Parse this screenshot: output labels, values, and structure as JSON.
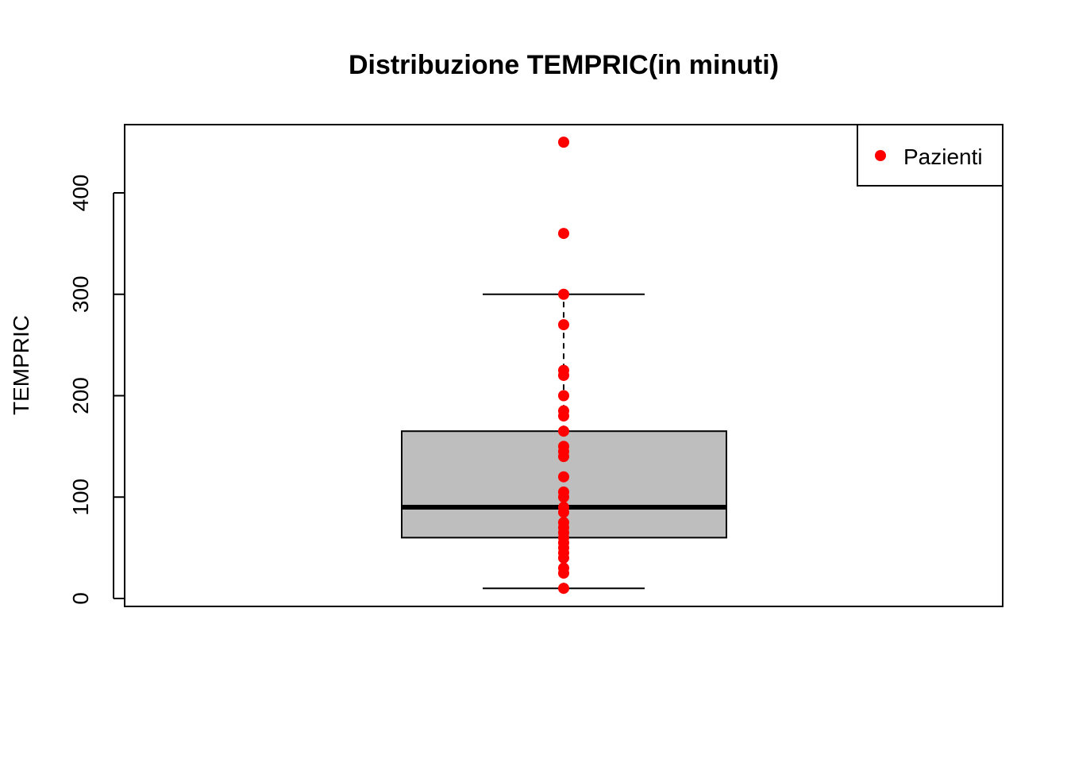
{
  "chart_data": {
    "type": "boxplot",
    "title": "Distribuzione TEMPRIC(in minuti)",
    "ylabel": "TEMPRIC",
    "xlabel": "",
    "ylim": [
      0,
      460
    ],
    "yticks": [
      0,
      100,
      200,
      300,
      400
    ],
    "grid": false,
    "box": {
      "lower_whisker": 10,
      "q1": 60,
      "median": 90,
      "q3": 165,
      "upper_whisker": 300
    },
    "box_color": "#bebebe",
    "points": {
      "name": "Pazienti",
      "color": "#ff0000",
      "values": [
        10,
        25,
        30,
        40,
        45,
        50,
        55,
        60,
        65,
        70,
        75,
        85,
        90,
        100,
        105,
        120,
        140,
        145,
        150,
        165,
        180,
        185,
        200,
        220,
        225,
        270,
        300,
        360,
        450
      ]
    },
    "legend": {
      "position": "top-right",
      "entries": [
        "Pazienti"
      ]
    }
  }
}
